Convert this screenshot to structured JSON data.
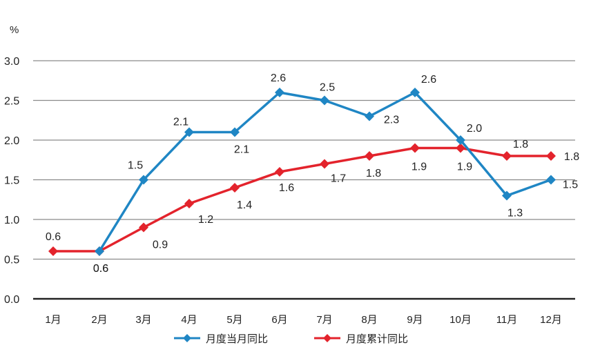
{
  "chart_data": {
    "type": "line",
    "title": "",
    "ylabel": "%",
    "xlabel": "",
    "ylim": [
      0.0,
      3.0
    ],
    "yticks": [
      "0.0",
      "0.5",
      "1.0",
      "1.5",
      "2.0",
      "2.5",
      "3.0"
    ],
    "grid": true,
    "legend_position": "bottom",
    "categories": [
      "1月",
      "2月",
      "3月",
      "4月",
      "5月",
      "6月",
      "7月",
      "8月",
      "9月",
      "10月",
      "11月",
      "12月"
    ],
    "series": [
      {
        "name": "月度当月同比",
        "color": "#1f86c4",
        "marker": "diamond",
        "values": [
          null,
          0.6,
          1.5,
          2.1,
          2.1,
          2.6,
          2.5,
          2.3,
          2.6,
          2.0,
          1.3,
          1.5
        ]
      },
      {
        "name": "月度累计同比",
        "color": "#e3232c",
        "marker": "diamond",
        "values": [
          0.6,
          0.6,
          0.9,
          1.2,
          1.4,
          1.6,
          1.7,
          1.8,
          1.9,
          1.9,
          1.8,
          1.8
        ]
      }
    ]
  },
  "axis": {
    "unit_label": "%"
  },
  "legend": {
    "items": [
      {
        "label": "月度当月同比",
        "color": "#1f86c4"
      },
      {
        "label": "月度累计同比",
        "color": "#e3232c"
      }
    ]
  }
}
